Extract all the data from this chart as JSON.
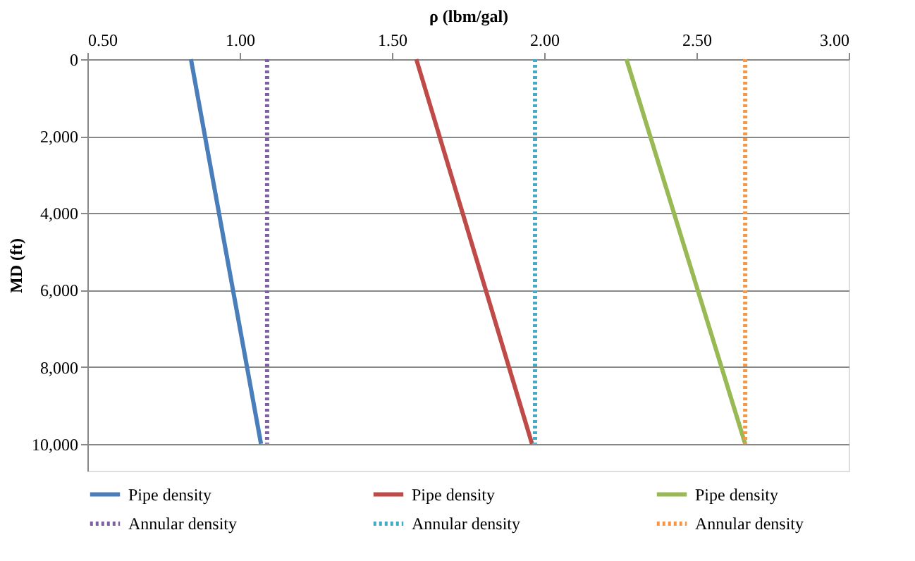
{
  "chart_data": {
    "type": "line",
    "xlabel": "ρ (lbm/gal)",
    "ylabel": "MD (ft)",
    "xlim": [
      0.5,
      3.0
    ],
    "xticks": [
      {
        "value": 0.5,
        "label": "0.50"
      },
      {
        "value": 1.0,
        "label": "1.00"
      },
      {
        "value": 1.5,
        "label": "1.50"
      },
      {
        "value": 2.0,
        "label": "2.00"
      },
      {
        "value": 2.5,
        "label": "2.50"
      },
      {
        "value": 3.0,
        "label": "3.00"
      }
    ],
    "ylim": [
      10700,
      0
    ],
    "yticks": [
      0,
      {
        "value": 2000,
        "label": "2,000"
      },
      {
        "value": 4000,
        "label": "4,000"
      },
      {
        "value": 6000,
        "label": "6,000"
      },
      {
        "value": 8000,
        "label": "8,000"
      },
      {
        "value": 10000,
        "label": "10,000"
      }
    ],
    "grid": "y",
    "legend": "bottom",
    "series": [
      {
        "name": "Pipe density",
        "color": "#4a7ebb",
        "line_style": "solid",
        "x": [
          0.84,
          0.955,
          1.07
        ],
        "values": [
          0,
          5000,
          10000
        ]
      },
      {
        "name": "Annular density",
        "color": "#7d60a0",
        "line_style": "dotted",
        "x": [
          1.09,
          1.09,
          1.09
        ],
        "values": [
          0,
          5000,
          10000
        ]
      },
      {
        "name": "Pipe density",
        "color": "#be4b48",
        "line_style": "solid",
        "x": [
          1.58,
          1.77,
          1.96
        ],
        "values": [
          0,
          5000,
          10000
        ]
      },
      {
        "name": "Annular density",
        "color": "#46aac5",
        "line_style": "dotted",
        "x": [
          1.97,
          1.97,
          1.97
        ],
        "values": [
          0,
          5000,
          10000
        ]
      },
      {
        "name": "Pipe density",
        "color": "#98b954",
        "line_style": "solid",
        "x": [
          2.27,
          2.465,
          2.66
        ],
        "values": [
          0,
          5000,
          10000
        ]
      },
      {
        "name": "Annular density",
        "color": "#f79646",
        "line_style": "dotted",
        "x": [
          2.66,
          2.66,
          2.66
        ],
        "values": [
          0,
          5000,
          10000
        ]
      }
    ]
  }
}
